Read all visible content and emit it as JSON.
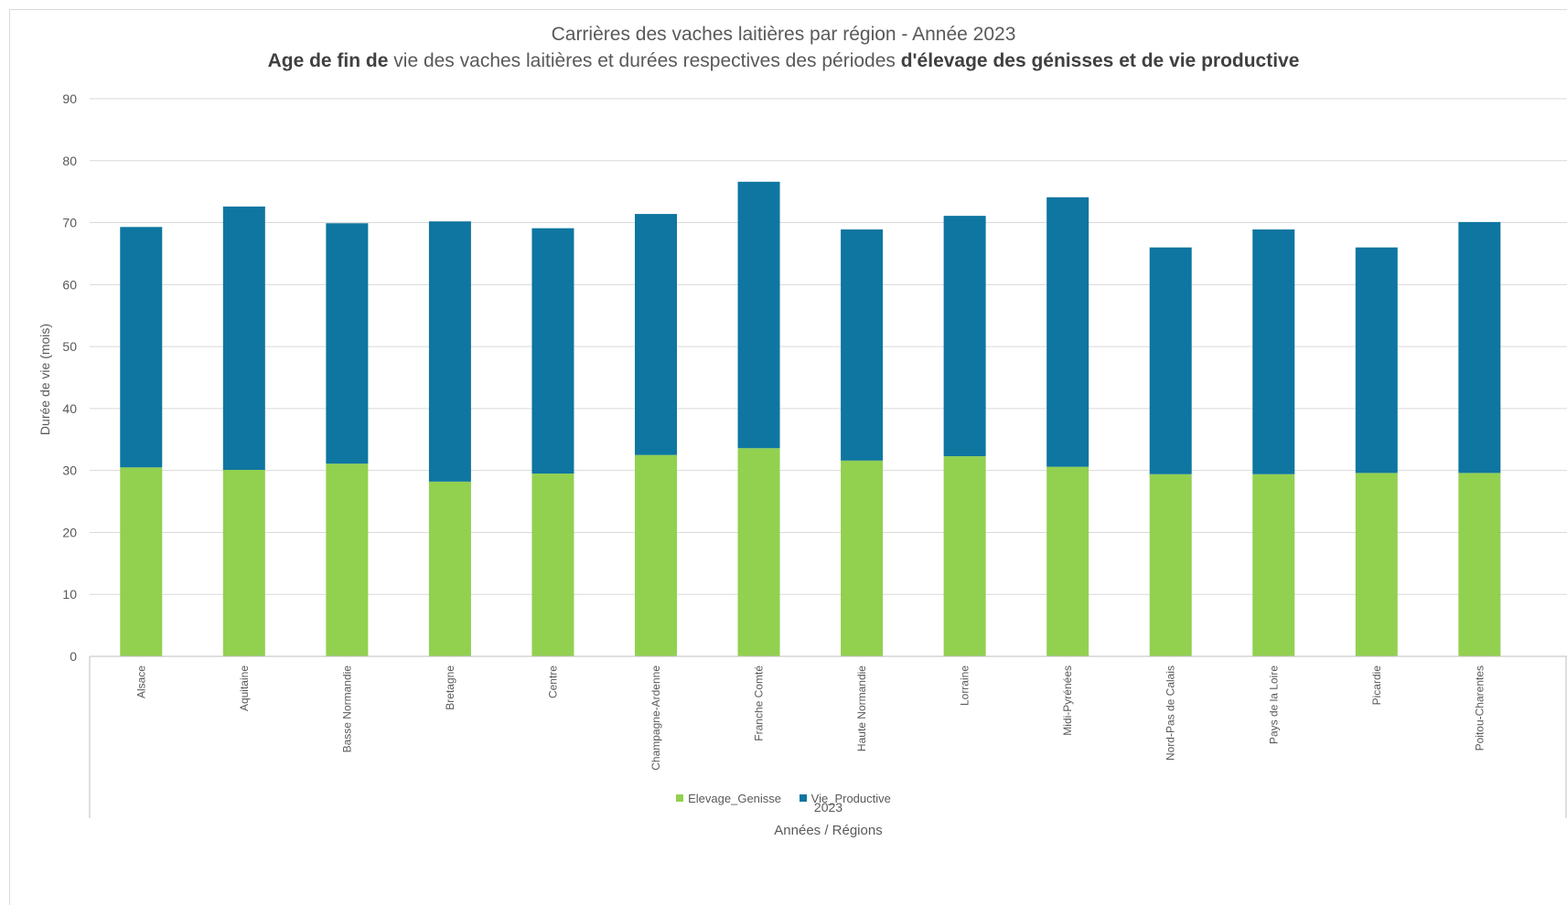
{
  "chart_data": {
    "type": "bar",
    "stacked": true,
    "title": "Carrières des vaches laitières par région - Année 2023",
    "subtitle": {
      "part1_bold": "Age de fin de",
      "part2": " vie des vaches laitières et durées respectives des périodes ",
      "part3_bold": "d'élevage des génisses et de vie productive"
    },
    "ylabel": "Durée de vie (mois)",
    "xlabel": "Années / Régions",
    "group_label": "2023",
    "ylim": [
      0,
      90
    ],
    "yticks": [
      0,
      10,
      20,
      30,
      40,
      50,
      60,
      70,
      80,
      90
    ],
    "grid": true,
    "legend_position": "bottom",
    "categories": [
      "Alsace",
      "Aquitaine",
      "Basse Normandie",
      "Bretagne",
      "Centre",
      "Champagne-Ardenne",
      "Franche Comté",
      "Haute Normandie",
      "Lorraine",
      "Midi-Pyrénées",
      "Nord-Pas de Calais",
      "Pays de la Loire",
      "Picardie",
      "Poitou-Charentes"
    ],
    "series": [
      {
        "name": "Elevage_Genisse",
        "color": "#92d050",
        "values": [
          30.5,
          30.1,
          31.1,
          28.2,
          29.5,
          32.5,
          33.6,
          31.6,
          32.3,
          30.6,
          29.4,
          29.4,
          29.6,
          29.6
        ]
      },
      {
        "name": "Vie_Productive",
        "color": "#0e76a0",
        "values": [
          38.8,
          42.5,
          38.8,
          42.0,
          39.6,
          38.9,
          43.0,
          37.3,
          38.8,
          43.5,
          36.6,
          39.5,
          36.4,
          40.5
        ]
      }
    ]
  }
}
